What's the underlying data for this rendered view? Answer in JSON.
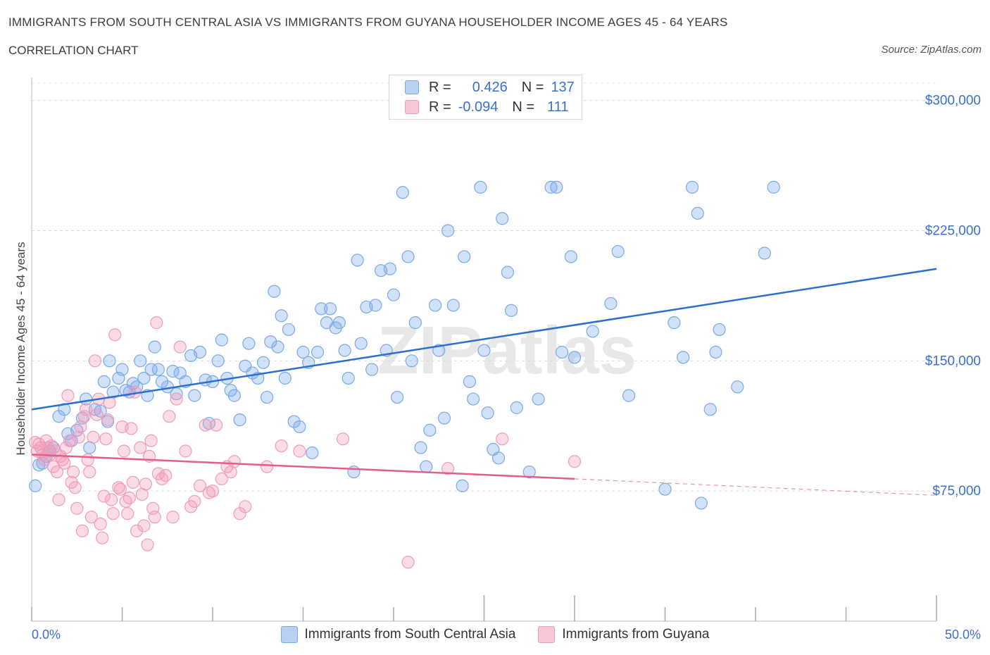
{
  "chart_data": {
    "type": "scatter",
    "title": "IMMIGRANTS FROM SOUTH CENTRAL ASIA VS IMMIGRANTS FROM GUYANA HOUSEHOLDER INCOME AGES 45 - 64 YEARS",
    "subtitle": "CORRELATION CHART",
    "source": "Source: ZipAtlas.com",
    "watermark": "ZIPatlas",
    "ylabel": "Householder Income Ages 45 - 64 years",
    "xlim": [
      0,
      50
    ],
    "ylim": [
      0,
      310000
    ],
    "x_tick_labels": [
      "0.0%",
      "50.0%"
    ],
    "y_ticks": [
      {
        "value": 75000,
        "label": "$75,000"
      },
      {
        "value": 150000,
        "label": "$150,000"
      },
      {
        "value": 225000,
        "label": "$225,000"
      },
      {
        "value": 300000,
        "label": "$300,000"
      }
    ],
    "legend_stats": [
      {
        "r_label": "R =",
        "r": "0.426",
        "n_label": "N =",
        "n": "137"
      },
      {
        "r_label": "R =",
        "r": "-0.094",
        "n_label": "N =",
        "n": "111"
      }
    ],
    "series": [
      {
        "name": "Immigrants from South Central Asia",
        "color": "#7aaae8",
        "line_color": "#2b6fd0",
        "trend": {
          "x0": 0,
          "y0": 122000,
          "x1": 50,
          "y1": 203000
        },
        "points": [
          [
            0.2,
            78000
          ],
          [
            0.4,
            90000
          ],
          [
            0.6,
            91000
          ],
          [
            0.8,
            95000
          ],
          [
            1.0,
            98000
          ],
          [
            1.2,
            100000
          ],
          [
            1.5,
            118000
          ],
          [
            1.8,
            122000
          ],
          [
            2.0,
            108000
          ],
          [
            2.2,
            104000
          ],
          [
            2.5,
            110000
          ],
          [
            2.8,
            117000
          ],
          [
            3.0,
            128000
          ],
          [
            3.2,
            100000
          ],
          [
            3.5,
            122000
          ],
          [
            3.8,
            121000
          ],
          [
            4.0,
            138000
          ],
          [
            4.2,
            115000
          ],
          [
            4.3,
            150000
          ],
          [
            4.5,
            132000
          ],
          [
            4.8,
            140000
          ],
          [
            5.0,
            145000
          ],
          [
            5.2,
            133000
          ],
          [
            5.4,
            132000
          ],
          [
            5.6,
            137000
          ],
          [
            5.8,
            135000
          ],
          [
            6.0,
            150000
          ],
          [
            6.2,
            140000
          ],
          [
            6.4,
            130000
          ],
          [
            6.6,
            145000
          ],
          [
            6.8,
            158000
          ],
          [
            7.0,
            145000
          ],
          [
            7.2,
            138000
          ],
          [
            7.5,
            135000
          ],
          [
            7.8,
            144000
          ],
          [
            8.0,
            131000
          ],
          [
            8.2,
            143000
          ],
          [
            8.5,
            138000
          ],
          [
            8.8,
            153000
          ],
          [
            9.0,
            130000
          ],
          [
            9.3,
            155000
          ],
          [
            9.6,
            139000
          ],
          [
            9.8,
            114000
          ],
          [
            10.0,
            138000
          ],
          [
            10.3,
            150000
          ],
          [
            10.5,
            162000
          ],
          [
            10.8,
            140000
          ],
          [
            11.0,
            133000
          ],
          [
            11.2,
            130000
          ],
          [
            11.5,
            116000
          ],
          [
            11.8,
            147000
          ],
          [
            12.0,
            160000
          ],
          [
            12.2,
            143000
          ],
          [
            12.5,
            140000
          ],
          [
            12.8,
            149000
          ],
          [
            13.0,
            129000
          ],
          [
            13.2,
            161000
          ],
          [
            13.4,
            190000
          ],
          [
            13.6,
            158000
          ],
          [
            13.8,
            176000
          ],
          [
            14.0,
            140000
          ],
          [
            14.2,
            168000
          ],
          [
            14.5,
            115000
          ],
          [
            14.8,
            112000
          ],
          [
            15.0,
            155000
          ],
          [
            15.3,
            149000
          ],
          [
            15.5,
            97000
          ],
          [
            15.8,
            155000
          ],
          [
            16.0,
            180000
          ],
          [
            16.3,
            172000
          ],
          [
            16.5,
            180000
          ],
          [
            16.8,
            169000
          ],
          [
            17.0,
            172000
          ],
          [
            17.3,
            156000
          ],
          [
            17.5,
            140000
          ],
          [
            17.8,
            86000
          ],
          [
            18.0,
            208000
          ],
          [
            18.2,
            160000
          ],
          [
            18.5,
            181000
          ],
          [
            18.8,
            145000
          ],
          [
            19.0,
            182000
          ],
          [
            19.3,
            202000
          ],
          [
            19.6,
            156000
          ],
          [
            19.8,
            203000
          ],
          [
            20.0,
            188000
          ],
          [
            20.2,
            129000
          ],
          [
            20.5,
            247000
          ],
          [
            20.8,
            210000
          ],
          [
            21.0,
            150000
          ],
          [
            21.2,
            172000
          ],
          [
            21.5,
            100000
          ],
          [
            21.8,
            89000
          ],
          [
            22.0,
            110000
          ],
          [
            22.3,
            182000
          ],
          [
            22.5,
            156000
          ],
          [
            22.8,
            117000
          ],
          [
            23.0,
            225000
          ],
          [
            23.3,
            182000
          ],
          [
            23.8,
            78000
          ],
          [
            23.9,
            210000
          ],
          [
            24.2,
            138000
          ],
          [
            24.4,
            128000
          ],
          [
            24.8,
            250000
          ],
          [
            25.0,
            156000
          ],
          [
            25.2,
            120000
          ],
          [
            25.5,
            99000
          ],
          [
            25.8,
            94000
          ],
          [
            26.0,
            232000
          ],
          [
            26.3,
            201000
          ],
          [
            26.5,
            179000
          ],
          [
            26.8,
            123000
          ],
          [
            27.5,
            86000
          ],
          [
            28.0,
            128000
          ],
          [
            28.7,
            250000
          ],
          [
            29.0,
            250000
          ],
          [
            29.3,
            155000
          ],
          [
            29.8,
            210000
          ],
          [
            30.0,
            152000
          ],
          [
            31.0,
            167000
          ],
          [
            32.0,
            183000
          ],
          [
            32.4,
            213000
          ],
          [
            33.0,
            130000
          ],
          [
            35.0,
            76000
          ],
          [
            35.5,
            172000
          ],
          [
            36.0,
            152000
          ],
          [
            36.5,
            250000
          ],
          [
            36.8,
            235000
          ],
          [
            37.0,
            68000
          ],
          [
            37.5,
            122000
          ],
          [
            37.8,
            155000
          ],
          [
            38.0,
            168000
          ],
          [
            39.0,
            135000
          ],
          [
            40.5,
            212000
          ],
          [
            41.0,
            250000
          ]
        ]
      },
      {
        "name": "Immigrants from Guyana",
        "color": "#f09cb8",
        "line_color": "#e45d8c",
        "trend": {
          "x0": 0,
          "y0": 96000,
          "x1": 30,
          "y1": 82000
        },
        "trend_dashed": {
          "x0": 30,
          "y0": 82000,
          "x1": 50,
          "y1": 72500
        },
        "points": [
          [
            0.2,
            103000
          ],
          [
            0.3,
            98000
          ],
          [
            0.4,
            102000
          ],
          [
            0.5,
            100000
          ],
          [
            0.6,
            96000
          ],
          [
            0.7,
            93000
          ],
          [
            0.8,
            104000
          ],
          [
            0.9,
            100000
          ],
          [
            1.0,
            96000
          ],
          [
            1.1,
            101000
          ],
          [
            1.2,
            89000
          ],
          [
            1.3,
            98000
          ],
          [
            1.4,
            86000
          ],
          [
            1.5,
            70000
          ],
          [
            1.6,
            95000
          ],
          [
            1.7,
            93000
          ],
          [
            1.8,
            91000
          ],
          [
            1.9,
            100000
          ],
          [
            2.0,
            130000
          ],
          [
            2.1,
            104000
          ],
          [
            2.2,
            80000
          ],
          [
            2.3,
            86000
          ],
          [
            2.4,
            77000
          ],
          [
            2.5,
            65000
          ],
          [
            2.6,
            106000
          ],
          [
            2.7,
            112000
          ],
          [
            2.8,
            52000
          ],
          [
            2.9,
            118000
          ],
          [
            3.0,
            122000
          ],
          [
            3.1,
            93000
          ],
          [
            3.2,
            86000
          ],
          [
            3.3,
            60000
          ],
          [
            3.4,
            106000
          ],
          [
            3.5,
            150000
          ],
          [
            3.6,
            119000
          ],
          [
            3.7,
            128000
          ],
          [
            3.8,
            56000
          ],
          [
            3.9,
            48000
          ],
          [
            4.0,
            72000
          ],
          [
            4.1,
            105000
          ],
          [
            4.2,
            116000
          ],
          [
            4.3,
            126000
          ],
          [
            4.4,
            70000
          ],
          [
            4.5,
            62000
          ],
          [
            4.6,
            165000
          ],
          [
            4.8,
            77000
          ],
          [
            4.9,
            76000
          ],
          [
            5.0,
            112000
          ],
          [
            5.1,
            98000
          ],
          [
            5.2,
            69000
          ],
          [
            5.3,
            62000
          ],
          [
            5.4,
            71000
          ],
          [
            5.5,
            111000
          ],
          [
            5.6,
            80000
          ],
          [
            5.7,
            132000
          ],
          [
            5.8,
            52000
          ],
          [
            6.0,
            100000
          ],
          [
            6.1,
            73000
          ],
          [
            6.2,
            55000
          ],
          [
            6.3,
            79000
          ],
          [
            6.4,
            44000
          ],
          [
            6.5,
            95000
          ],
          [
            6.6,
            104000
          ],
          [
            6.7,
            65000
          ],
          [
            6.8,
            60000
          ],
          [
            6.9,
            172000
          ],
          [
            7.0,
            85000
          ],
          [
            7.2,
            82000
          ],
          [
            7.4,
            84000
          ],
          [
            7.6,
            118000
          ],
          [
            7.8,
            60000
          ],
          [
            8.0,
            128000
          ],
          [
            8.2,
            158000
          ],
          [
            8.5,
            98000
          ],
          [
            8.8,
            66000
          ],
          [
            9.0,
            69000
          ],
          [
            9.3,
            78000
          ],
          [
            9.6,
            113000
          ],
          [
            9.8,
            74000
          ],
          [
            10.0,
            75000
          ],
          [
            10.2,
            113000
          ],
          [
            10.5,
            82000
          ],
          [
            10.8,
            89000
          ],
          [
            11.0,
            86000
          ],
          [
            11.2,
            92000
          ],
          [
            11.5,
            62000
          ],
          [
            11.8,
            66000
          ],
          [
            13.0,
            89000
          ],
          [
            13.8,
            101000
          ],
          [
            14.8,
            98000
          ],
          [
            17.2,
            105000
          ],
          [
            20.8,
            34000
          ],
          [
            23.0,
            88000
          ],
          [
            26.0,
            105000
          ],
          [
            30.0,
            92000
          ]
        ]
      }
    ]
  }
}
